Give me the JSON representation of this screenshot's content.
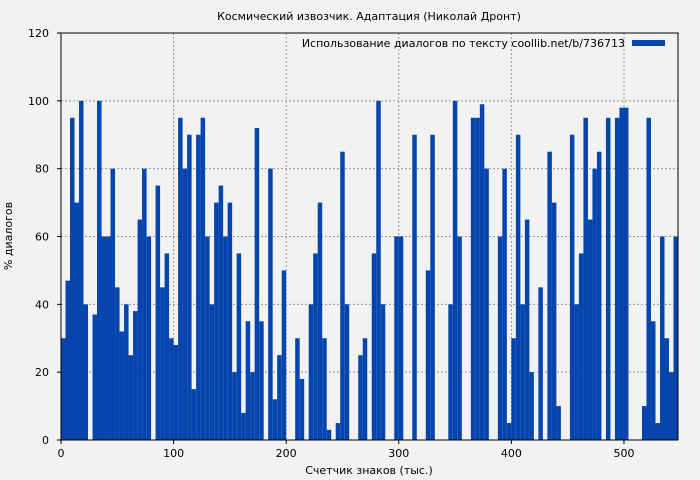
{
  "chart_data": {
    "type": "bar",
    "title": "Космический извозчик. Адаптация (Николай Дронт)",
    "xlabel": "Счетчик знаков (тыс.)",
    "ylabel": "% диалогов",
    "legend": {
      "label": "Использование диалогов по тексту coollib.net/b/736713",
      "placement": "top-right"
    },
    "xlim": [
      0,
      548
    ],
    "ylim": [
      0,
      120
    ],
    "xticks": [
      0,
      100,
      200,
      300,
      400,
      500
    ],
    "yticks": [
      0,
      20,
      40,
      60,
      80,
      100,
      120
    ],
    "grid": true,
    "bar_color": "#0645ad",
    "x_step": 4,
    "x_start": 0,
    "values": [
      30,
      47,
      95,
      70,
      100,
      40,
      0,
      37,
      100,
      60,
      60,
      80,
      45,
      32,
      40,
      25,
      38,
      65,
      80,
      60,
      0,
      75,
      45,
      55,
      30,
      28,
      95,
      80,
      90,
      15,
      90,
      95,
      60,
      40,
      70,
      75,
      60,
      70,
      20,
      55,
      8,
      35,
      20,
      92,
      35,
      0,
      80,
      12,
      25,
      50,
      0,
      0,
      30,
      18,
      0,
      40,
      55,
      70,
      30,
      3,
      0,
      5,
      85,
      40,
      0,
      0,
      25,
      30,
      0,
      55,
      100,
      40,
      0,
      0,
      60,
      60,
      0,
      0,
      90,
      0,
      0,
      50,
      90,
      0,
      0,
      0,
      40,
      100,
      60,
      0,
      0,
      95,
      95,
      99,
      80,
      0,
      0,
      60,
      80,
      5,
      30,
      90,
      40,
      65,
      20,
      0,
      45,
      0,
      85,
      70,
      10,
      0,
      0,
      90,
      40,
      55,
      95,
      65,
      80,
      85,
      0,
      95,
      0,
      95,
      98,
      98,
      0,
      0,
      0,
      10,
      95,
      35,
      5,
      60,
      30,
      20,
      60,
      30
    ]
  }
}
